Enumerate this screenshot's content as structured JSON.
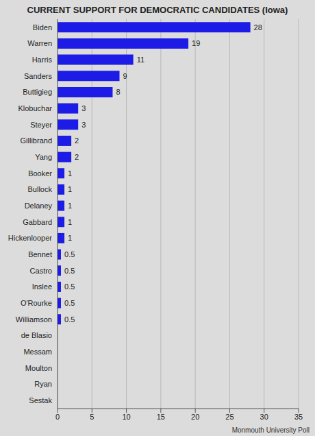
{
  "chart_data": {
    "type": "bar",
    "title": "CURRENT SUPPORT FOR DEMOCRATIC CANDIDATES (Iowa)",
    "source": "Monmouth University Poll",
    "categories": [
      "Biden",
      "Warren",
      "Harris",
      "Sanders",
      "Buttigieg",
      "Klobuchar",
      "Steyer",
      "Gillibrand",
      "Yang",
      "Booker",
      "Bullock",
      "Delaney",
      "Gabbard",
      "Hickenlooper",
      "Bennet",
      "Castro",
      "Inslee",
      "O'Rourke",
      "Williamson",
      "de Blasio",
      "Messam",
      "Moulton",
      "Ryan",
      "Sestak"
    ],
    "values": [
      28,
      19,
      11,
      9,
      8,
      3,
      3,
      2,
      2,
      1,
      1,
      1,
      1,
      1,
      0.5,
      0.5,
      0.5,
      0.5,
      0.5,
      0,
      0,
      0,
      0,
      0
    ],
    "color": "#1c1ce6",
    "xlim": [
      0,
      35
    ],
    "xticks": [
      0,
      5,
      10,
      15,
      20,
      25,
      30,
      35
    ],
    "grid": true,
    "orientation": "horizontal",
    "data_labels": true
  }
}
